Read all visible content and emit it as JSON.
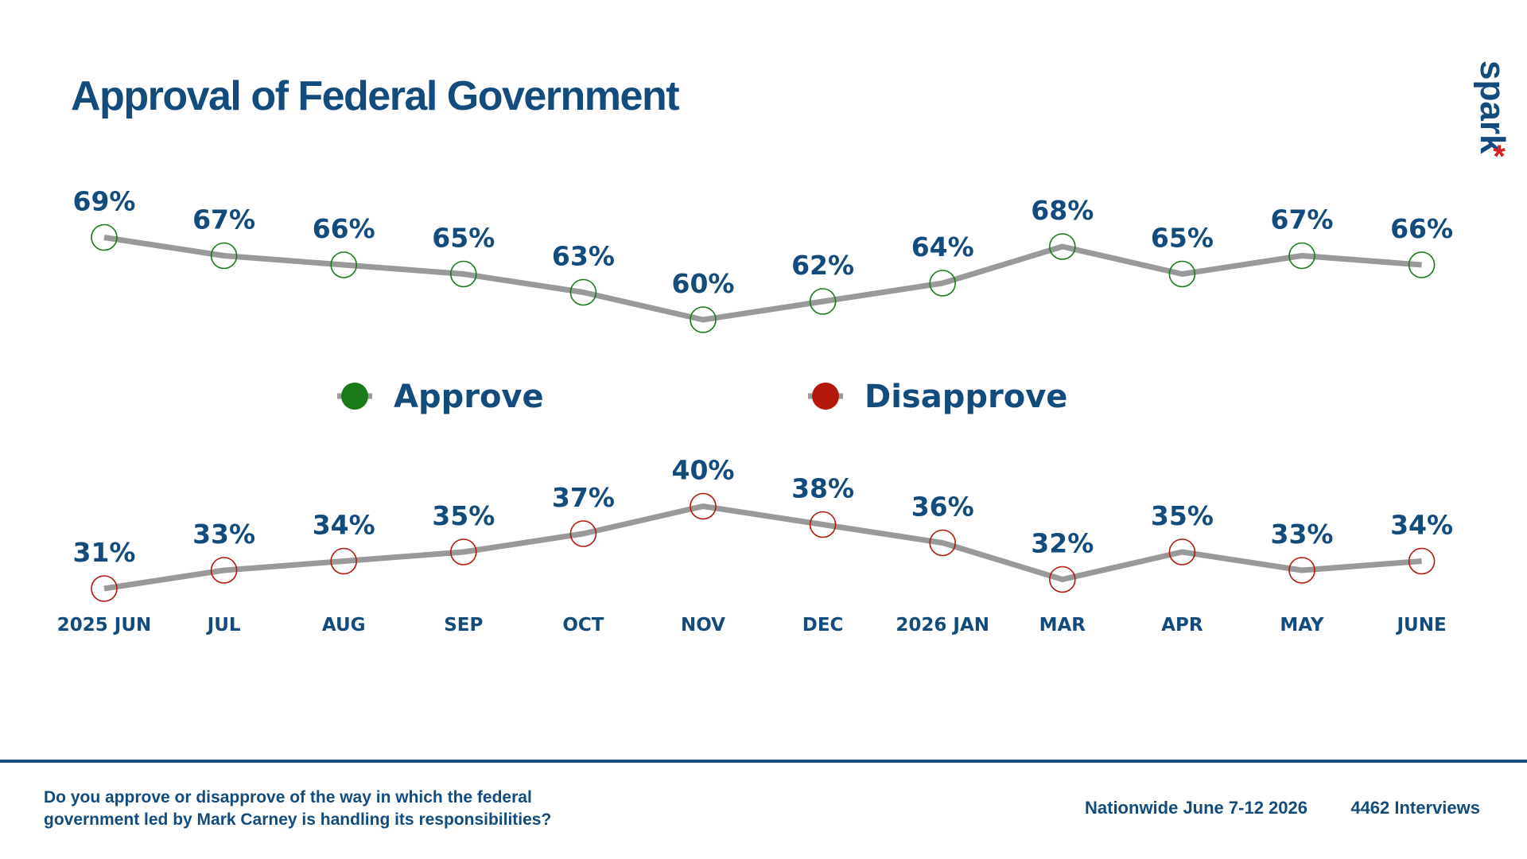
{
  "brand": "spark",
  "brand_mark": "*",
  "chart_data": {
    "type": "line",
    "title": "Approval of Federal Government",
    "categories": [
      "2025 JUN",
      "JUL",
      "AUG",
      "SEP",
      "OCT",
      "NOV",
      "DEC",
      "2026 JAN",
      "MAR",
      "APR",
      "MAY",
      "JUNE"
    ],
    "series": [
      {
        "name": "Approve",
        "color": "#1a7a1a",
        "values": [
          69,
          67,
          66,
          65,
          63,
          60,
          62,
          64,
          68,
          65,
          67,
          66
        ],
        "value_labels": [
          "69%",
          "67%",
          "66%",
          "65%",
          "63%",
          "60%",
          "62%",
          "64%",
          "68%",
          "65%",
          "67%",
          "66%"
        ]
      },
      {
        "name": "Disapprove",
        "color": "#b3190b",
        "values": [
          31,
          33,
          34,
          35,
          37,
          40,
          38,
          36,
          32,
          35,
          33,
          34
        ],
        "value_labels": [
          "31%",
          "33%",
          "34%",
          "35%",
          "37%",
          "40%",
          "38%",
          "36%",
          "32%",
          "35%",
          "33%",
          "34%"
        ]
      }
    ],
    "line_color": "#999999"
  },
  "footer": {
    "question": [
      "Do you approve or disapprove of the way in which the federal",
      "government led by Mark Carney is handling its responsibilities?"
    ],
    "sample": "Nationwide June 7-12 2026",
    "interviews": "4462  Interviews"
  }
}
